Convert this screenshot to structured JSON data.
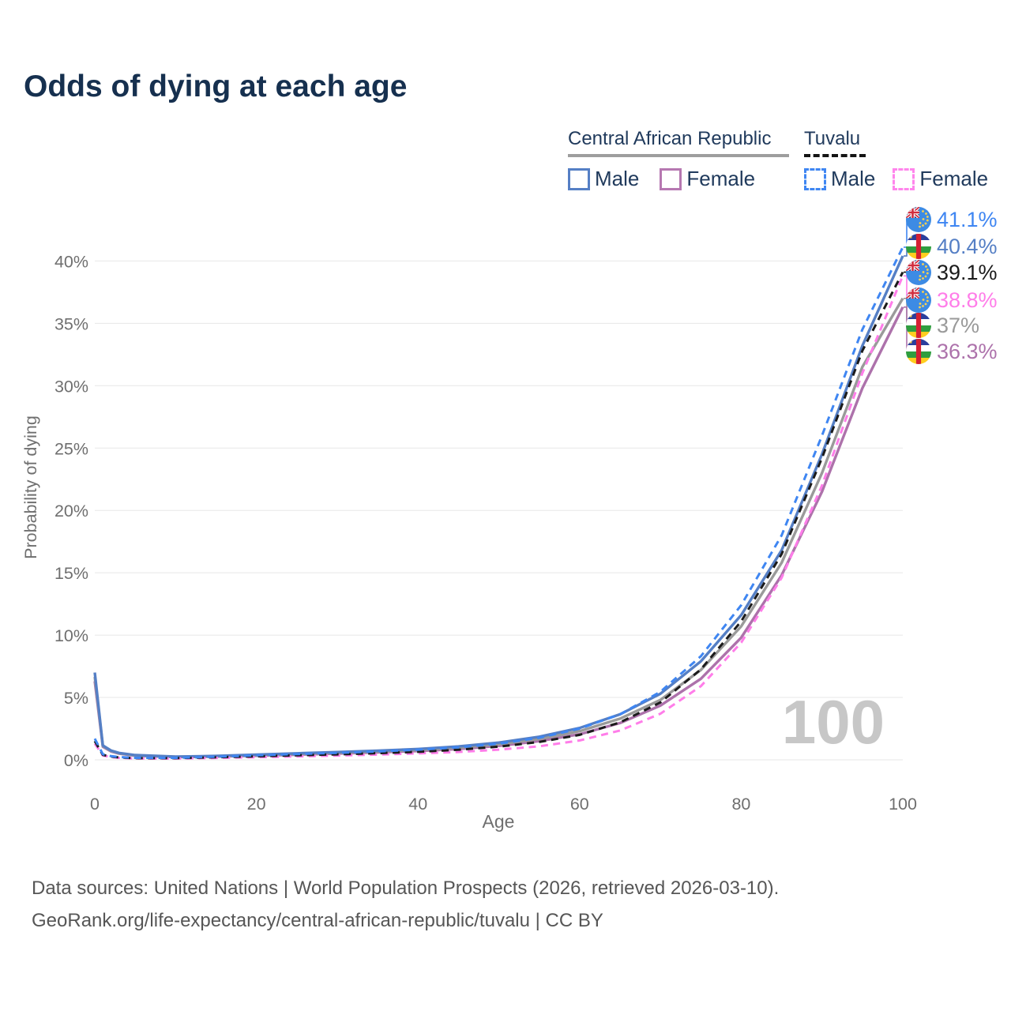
{
  "header": {
    "title": "Odds of dying at each age"
  },
  "legend": {
    "groups": [
      {
        "name": "Central African Republic",
        "line_color": "#9e9e9e",
        "line_style": "solid",
        "items": [
          {
            "label": "Male",
            "color": "#557fc5",
            "style": "solid"
          },
          {
            "label": "Female",
            "color": "#b678b1",
            "style": "solid"
          }
        ]
      },
      {
        "name": "Tuvalu",
        "line_color": "#141414",
        "line_style": "dashed",
        "items": [
          {
            "label": "Male",
            "color": "#3f86f2",
            "style": "dashed"
          },
          {
            "label": "Female",
            "color": "#ff85ec",
            "style": "dashed"
          }
        ]
      }
    ]
  },
  "chart_data": {
    "type": "line",
    "title": "Odds of dying at each age",
    "xlabel": "Age",
    "ylabel": "Probability of dying",
    "xlim": [
      0,
      100
    ],
    "ylim": [
      0,
      43
    ],
    "grid": "horizontal",
    "legend_position": "top-right",
    "x_ticks": [
      "0",
      "20",
      "40",
      "60",
      "80",
      "100"
    ],
    "x_tick_values": [
      0,
      20,
      40,
      60,
      80,
      100
    ],
    "y_ticks": [
      "0%",
      "5%",
      "10%",
      "15%",
      "20%",
      "25%",
      "30%",
      "35%",
      "40%"
    ],
    "y_tick_values": [
      0,
      5,
      10,
      15,
      20,
      25,
      30,
      35,
      40
    ],
    "x": [
      0,
      1,
      2,
      3,
      5,
      10,
      15,
      20,
      25,
      30,
      35,
      40,
      45,
      50,
      55,
      60,
      65,
      70,
      75,
      80,
      85,
      90,
      95,
      100
    ],
    "series": [
      {
        "name": "Central African Republic Female",
        "country": "Central African Republic",
        "sex": "Female",
        "color": "#ad72ab",
        "dash": "solid",
        "end_label": "36.3%",
        "values": [
          6.3,
          1.05,
          0.68,
          0.5,
          0.33,
          0.22,
          0.26,
          0.33,
          0.41,
          0.5,
          0.6,
          0.71,
          0.87,
          1.12,
          1.5,
          2.05,
          2.95,
          4.35,
          6.5,
          9.8,
          14.8,
          21.5,
          29.8,
          36.3
        ]
      },
      {
        "name": "Central African Republic Total",
        "country": "Central African Republic",
        "sex": "Total",
        "color": "#9a9a9a",
        "dash": "solid",
        "end_label": "37%",
        "values": [
          6.65,
          1.1,
          0.71,
          0.52,
          0.35,
          0.24,
          0.28,
          0.37,
          0.46,
          0.56,
          0.66,
          0.79,
          0.97,
          1.25,
          1.67,
          2.3,
          3.3,
          4.8,
          7.2,
          10.7,
          15.8,
          23.0,
          31.5,
          37.0
        ]
      },
      {
        "name": "Central African Republic Male",
        "country": "Central African Republic",
        "sex": "Male",
        "color": "#557fc5",
        "dash": "solid",
        "end_label": "40.4%",
        "values": [
          7.0,
          1.15,
          0.75,
          0.55,
          0.38,
          0.26,
          0.31,
          0.42,
          0.52,
          0.62,
          0.73,
          0.87,
          1.07,
          1.38,
          1.85,
          2.55,
          3.65,
          5.3,
          7.9,
          11.6,
          16.8,
          24.5,
          33.2,
          40.4
        ]
      },
      {
        "name": "Tuvalu Female",
        "country": "Tuvalu",
        "sex": "Female",
        "color": "#ff7de9",
        "dash": "dashed",
        "end_label": "38.8%",
        "values": [
          1.3,
          0.35,
          0.22,
          0.16,
          0.11,
          0.1,
          0.15,
          0.21,
          0.27,
          0.34,
          0.42,
          0.51,
          0.63,
          0.82,
          1.08,
          1.55,
          2.35,
          3.7,
          5.9,
          9.4,
          14.6,
          22.0,
          31.0,
          38.8
        ]
      },
      {
        "name": "Tuvalu Total",
        "country": "Tuvalu",
        "sex": "Total",
        "color": "#1b1b1b",
        "dash": "dashed",
        "end_label": "39.1%",
        "values": [
          1.5,
          0.4,
          0.26,
          0.19,
          0.13,
          0.13,
          0.2,
          0.28,
          0.36,
          0.44,
          0.53,
          0.64,
          0.81,
          1.06,
          1.43,
          2.0,
          3.0,
          4.6,
          7.25,
          11.1,
          16.5,
          24.2,
          32.8,
          39.1
        ]
      },
      {
        "name": "Tuvalu Male",
        "country": "Tuvalu",
        "sex": "Male",
        "color": "#3f86f2",
        "dash": "dashed",
        "end_label": "41.1%",
        "values": [
          1.7,
          0.45,
          0.3,
          0.22,
          0.16,
          0.16,
          0.25,
          0.36,
          0.46,
          0.56,
          0.67,
          0.81,
          1.0,
          1.3,
          1.77,
          2.5,
          3.65,
          5.45,
          8.3,
          12.4,
          18.0,
          26.0,
          34.5,
          41.1
        ]
      }
    ],
    "end_labels_order": [
      {
        "text": "41.1%",
        "series": "Tuvalu Male",
        "flag": "tuvalu",
        "color": "#3f86f2"
      },
      {
        "text": "40.4%",
        "series": "Central African Republic Male",
        "flag": "car",
        "color": "#557fc5"
      },
      {
        "text": "39.1%",
        "series": "Tuvalu Total",
        "flag": "tuvalu",
        "color": "#1b1b1b"
      },
      {
        "text": "38.8%",
        "series": "Tuvalu Female",
        "flag": "tuvalu",
        "color": "#ff7de9"
      },
      {
        "text": "37%",
        "series": "Central African Republic Total",
        "flag": "car",
        "color": "#9a9a9a"
      },
      {
        "text": "36.3%",
        "series": "Central African Republic Female",
        "flag": "car",
        "color": "#ad72ab"
      }
    ],
    "watermark": "100"
  },
  "footer": {
    "line1": "Data sources: United Nations | World Population Prospects (2026, retrieved 2026-03-10).",
    "line2": "GeoRank.org/life-expectancy/central-african-republic/tuvalu | CC BY"
  }
}
